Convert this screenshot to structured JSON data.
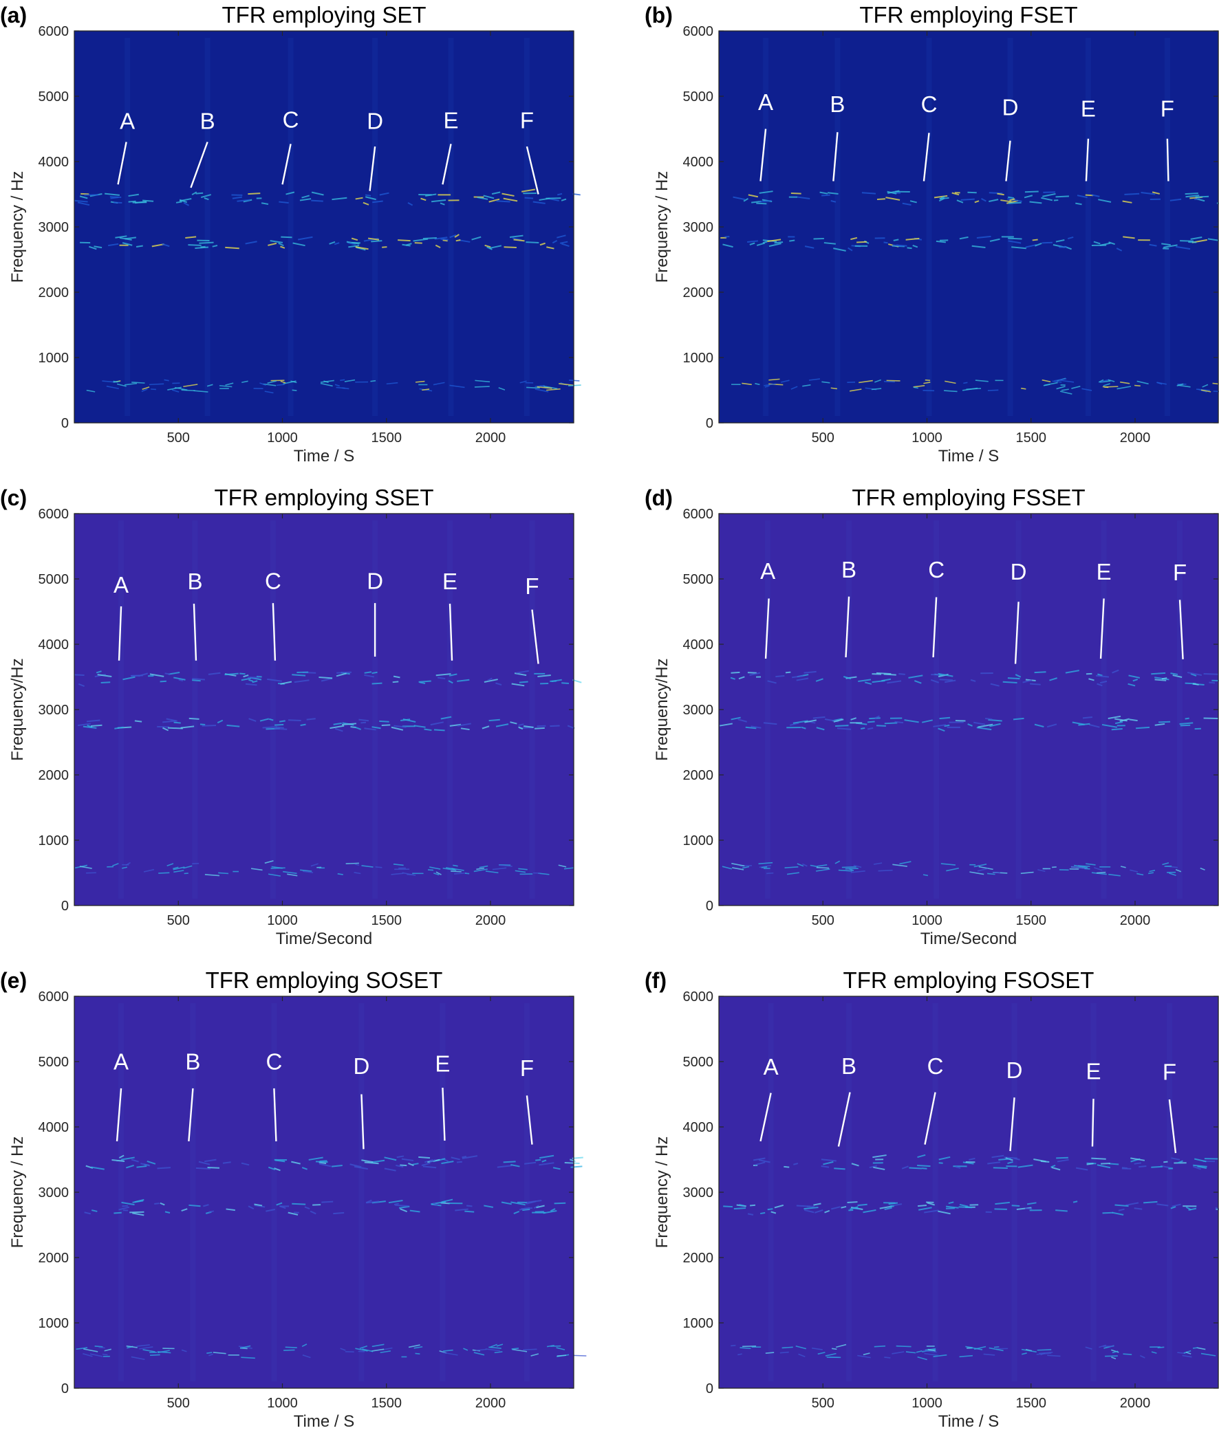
{
  "chart_data": [
    {
      "panel_label": "(a)",
      "type": "heatmap",
      "title": "TFR employing SET",
      "xlabel": "Time / S",
      "ylabel": "Frequency / Hz",
      "xlim": [
        0,
        2400
      ],
      "ylim": [
        0,
        6000
      ],
      "xticks": [
        500,
        1000,
        1500,
        2000
      ],
      "yticks": [
        0,
        1000,
        2000,
        3000,
        4000,
        5000,
        6000
      ],
      "colors": {
        "background": "#0e1f8f",
        "mid": "#1e5bd6",
        "ridge_low": "#39c2e0",
        "ridge_high": "#f2e64a"
      },
      "ridge_bands_hz": [
        3450,
        2760,
        570
      ],
      "annotations": [
        {
          "label": "A",
          "time": 255,
          "freq": 4500,
          "line": [
            [
              250,
              4300
            ],
            [
              210,
              3650
            ]
          ]
        },
        {
          "label": "B",
          "time": 640,
          "freq": 4500,
          "line": [
            [
              640,
              4300
            ],
            [
              560,
              3600
            ]
          ]
        },
        {
          "label": "C",
          "time": 1040,
          "freq": 4520,
          "line": [
            [
              1040,
              4270
            ],
            [
              1000,
              3650
            ]
          ]
        },
        {
          "label": "D",
          "time": 1445,
          "freq": 4500,
          "line": [
            [
              1445,
              4230
            ],
            [
              1420,
              3550
            ]
          ]
        },
        {
          "label": "E",
          "time": 1810,
          "freq": 4510,
          "line": [
            [
              1810,
              4270
            ],
            [
              1770,
              3650
            ]
          ]
        },
        {
          "label": "F",
          "time": 2175,
          "freq": 4510,
          "line": [
            [
              2175,
              4230
            ],
            [
              2230,
              3500
            ]
          ]
        }
      ]
    },
    {
      "panel_label": "(b)",
      "type": "heatmap",
      "title": "TFR employing FSET",
      "xlabel": "Time / S",
      "ylabel": "Frequency / Hz",
      "xlim": [
        0,
        2400
      ],
      "ylim": [
        0,
        6000
      ],
      "xticks": [
        500,
        1000,
        1500,
        2000
      ],
      "yticks": [
        0,
        1000,
        2000,
        3000,
        4000,
        5000,
        6000
      ],
      "colors": {
        "background": "#0e1f8f",
        "mid": "#1e5bd6",
        "ridge_low": "#39c2e0",
        "ridge_high": "#f2e64a"
      },
      "ridge_bands_hz": [
        3450,
        2760,
        570
      ],
      "annotations": [
        {
          "label": "A",
          "time": 225,
          "freq": 4790,
          "line": [
            [
              225,
              4500
            ],
            [
              200,
              3700
            ]
          ]
        },
        {
          "label": "B",
          "time": 570,
          "freq": 4760,
          "line": [
            [
              570,
              4450
            ],
            [
              550,
              3700
            ]
          ]
        },
        {
          "label": "C",
          "time": 1010,
          "freq": 4760,
          "line": [
            [
              1010,
              4440
            ],
            [
              985,
              3700
            ]
          ]
        },
        {
          "label": "D",
          "time": 1400,
          "freq": 4710,
          "line": [
            [
              1400,
              4320
            ],
            [
              1380,
              3700
            ]
          ]
        },
        {
          "label": "E",
          "time": 1775,
          "freq": 4690,
          "line": [
            [
              1775,
              4350
            ],
            [
              1765,
              3700
            ]
          ]
        },
        {
          "label": "F",
          "time": 2155,
          "freq": 4690,
          "line": [
            [
              2155,
              4350
            ],
            [
              2160,
              3700
            ]
          ]
        }
      ]
    },
    {
      "panel_label": "(c)",
      "type": "heatmap",
      "title": "TFR employing SSET",
      "xlabel": "Time/Second",
      "ylabel": "Frequency/Hz",
      "xlim": [
        0,
        2400
      ],
      "ylim": [
        0,
        6000
      ],
      "xticks": [
        500,
        1000,
        1500,
        2000
      ],
      "yticks": [
        0,
        1000,
        2000,
        3000,
        4000,
        5000,
        6000
      ],
      "colors": {
        "background": "#3927a6",
        "mid": "#3c55d0",
        "ridge_low": "#2fb1e3",
        "ridge_high": "#66d9f0"
      },
      "ridge_bands_hz": [
        3480,
        2780,
        560
      ],
      "annotations": [
        {
          "label": "A",
          "time": 225,
          "freq": 4790,
          "line": [
            [
              225,
              4580
            ],
            [
              215,
              3750
            ]
          ]
        },
        {
          "label": "B",
          "time": 580,
          "freq": 4840,
          "line": [
            [
              575,
              4620
            ],
            [
              585,
              3750
            ]
          ]
        },
        {
          "label": "C",
          "time": 955,
          "freq": 4850,
          "line": [
            [
              955,
              4630
            ],
            [
              965,
              3750
            ]
          ]
        },
        {
          "label": "D",
          "time": 1445,
          "freq": 4850,
          "line": [
            [
              1445,
              4630
            ],
            [
              1445,
              3810
            ]
          ]
        },
        {
          "label": "E",
          "time": 1805,
          "freq": 4840,
          "line": [
            [
              1805,
              4620
            ],
            [
              1815,
              3750
            ]
          ]
        },
        {
          "label": "F",
          "time": 2200,
          "freq": 4770,
          "line": [
            [
              2200,
              4530
            ],
            [
              2230,
              3700
            ]
          ]
        }
      ]
    },
    {
      "panel_label": "(d)",
      "type": "heatmap",
      "title": "TFR employing FSSET",
      "xlabel": "Time/Second",
      "ylabel": "Frequency/Hz",
      "xlim": [
        0,
        2400
      ],
      "ylim": [
        0,
        6000
      ],
      "xticks": [
        500,
        1000,
        1500,
        2000
      ],
      "yticks": [
        0,
        1000,
        2000,
        3000,
        4000,
        5000,
        6000
      ],
      "colors": {
        "background": "#3927a6",
        "mid": "#3c55d0",
        "ridge_low": "#2fb1e3",
        "ridge_high": "#66d9f0"
      },
      "ridge_bands_hz": [
        3480,
        2780,
        560
      ],
      "annotations": [
        {
          "label": "A",
          "time": 235,
          "freq": 5000,
          "line": [
            [
              240,
              4700
            ],
            [
              225,
              3780
            ]
          ]
        },
        {
          "label": "B",
          "time": 625,
          "freq": 5020,
          "line": [
            [
              625,
              4730
            ],
            [
              610,
              3800
            ]
          ]
        },
        {
          "label": "C",
          "time": 1045,
          "freq": 5020,
          "line": [
            [
              1045,
              4720
            ],
            [
              1030,
              3800
            ]
          ]
        },
        {
          "label": "D",
          "time": 1440,
          "freq": 4990,
          "line": [
            [
              1440,
              4650
            ],
            [
              1425,
              3700
            ]
          ]
        },
        {
          "label": "E",
          "time": 1850,
          "freq": 4990,
          "line": [
            [
              1850,
              4700
            ],
            [
              1835,
              3780
            ]
          ]
        },
        {
          "label": "F",
          "time": 2215,
          "freq": 4980,
          "line": [
            [
              2215,
              4680
            ],
            [
              2230,
              3770
            ]
          ]
        }
      ]
    },
    {
      "panel_label": "(e)",
      "type": "heatmap",
      "title": "TFR employing SOSET",
      "xlabel": "Time / S",
      "ylabel": "Frequency / Hz",
      "xlim": [
        0,
        2400
      ],
      "ylim": [
        0,
        6000
      ],
      "xticks": [
        500,
        1000,
        1500,
        2000
      ],
      "yticks": [
        0,
        1000,
        2000,
        3000,
        4000,
        5000,
        6000
      ],
      "colors": {
        "background": "#3927a6",
        "mid": "#3c55d0",
        "ridge_low": "#2fb1e3",
        "ridge_high": "#66d9f0"
      },
      "ridge_bands_hz": [
        3450,
        2760,
        560
      ],
      "annotations": [
        {
          "label": "A",
          "time": 225,
          "freq": 4880,
          "line": [
            [
              225,
              4590
            ],
            [
              205,
              3780
            ]
          ]
        },
        {
          "label": "B",
          "time": 570,
          "freq": 4880,
          "line": [
            [
              570,
              4590
            ],
            [
              550,
              3780
            ]
          ]
        },
        {
          "label": "C",
          "time": 960,
          "freq": 4880,
          "line": [
            [
              960,
              4590
            ],
            [
              970,
              3780
            ]
          ]
        },
        {
          "label": "D",
          "time": 1380,
          "freq": 4810,
          "line": [
            [
              1380,
              4500
            ],
            [
              1390,
              3660
            ]
          ]
        },
        {
          "label": "E",
          "time": 1770,
          "freq": 4850,
          "line": [
            [
              1770,
              4600
            ],
            [
              1780,
              3790
            ]
          ]
        },
        {
          "label": "F",
          "time": 2175,
          "freq": 4780,
          "line": [
            [
              2175,
              4480
            ],
            [
              2200,
              3730
            ]
          ]
        }
      ]
    },
    {
      "panel_label": "(f)",
      "type": "heatmap",
      "title": "TFR employing FSOSET",
      "xlabel": "Time / S",
      "ylabel": "Frequency / Hz",
      "xlim": [
        0,
        2400
      ],
      "ylim": [
        0,
        6000
      ],
      "xticks": [
        500,
        1000,
        1500,
        2000
      ],
      "yticks": [
        0,
        1000,
        2000,
        3000,
        4000,
        5000,
        6000
      ],
      "colors": {
        "background": "#3927a6",
        "mid": "#3c55d0",
        "ridge_low": "#2fb1e3",
        "ridge_high": "#66d9f0"
      },
      "ridge_bands_hz": [
        3450,
        2760,
        560
      ],
      "annotations": [
        {
          "label": "A",
          "time": 250,
          "freq": 4800,
          "line": [
            [
              250,
              4520
            ],
            [
              200,
              3780
            ]
          ]
        },
        {
          "label": "B",
          "time": 625,
          "freq": 4810,
          "line": [
            [
              630,
              4530
            ],
            [
              575,
              3700
            ]
          ]
        },
        {
          "label": "C",
          "time": 1040,
          "freq": 4810,
          "line": [
            [
              1040,
              4530
            ],
            [
              990,
              3730
            ]
          ]
        },
        {
          "label": "D",
          "time": 1420,
          "freq": 4750,
          "line": [
            [
              1420,
              4450
            ],
            [
              1400,
              3630
            ]
          ]
        },
        {
          "label": "E",
          "time": 1800,
          "freq": 4730,
          "line": [
            [
              1800,
              4430
            ],
            [
              1795,
              3700
            ]
          ]
        },
        {
          "label": "F",
          "time": 2165,
          "freq": 4720,
          "line": [
            [
              2165,
              4420
            ],
            [
              2195,
              3600
            ]
          ]
        }
      ]
    }
  ]
}
